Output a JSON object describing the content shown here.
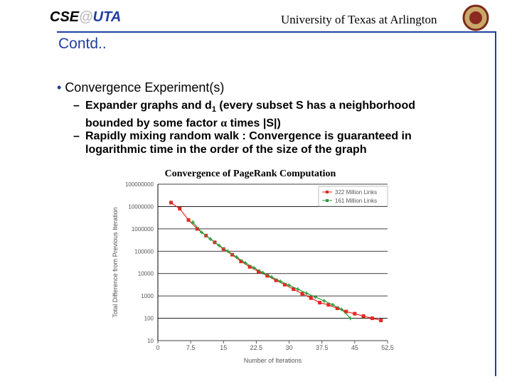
{
  "header": {
    "logo": [
      "CSE",
      "@",
      "UTA"
    ],
    "university": "University of Texas at Arlington"
  },
  "title": "Contd..",
  "bullets": [
    {
      "text": "Convergence Experiment(s)",
      "sub": [
        {
          "parts": [
            "Expander graphs and d",
            "1",
            " (every subset S has a neighborhood bounded by some factor ",
            "α",
            " times |S|)"
          ]
        },
        {
          "parts": [
            "Rapidly mixing random walk : Convergence is guaranteed in logarithmic time in the order of the size of the graph"
          ]
        }
      ]
    }
  ],
  "chart_data": {
    "type": "line",
    "title": "Convergence of PageRank Computation",
    "x_label": "Number of Iterations",
    "y_label": "Total Difference from Previous Iteration",
    "log_y": true,
    "grid": true,
    "legend": "top-right",
    "xlim": [
      0,
      52.5
    ],
    "xticks": [
      0,
      7.5,
      15,
      22.5,
      30,
      37.5,
      45,
      52.5
    ],
    "ylim": [
      10,
      100000000
    ],
    "yticks": [
      10,
      100,
      1000,
      10000,
      100000,
      1000000,
      10000000,
      100000000
    ],
    "series": [
      {
        "name": "322 Million Links",
        "color": "#e8251f",
        "marker": "square",
        "x": [
          3,
          5,
          7,
          9,
          11,
          13,
          15,
          17,
          19,
          21,
          23,
          25,
          27,
          29,
          31,
          33,
          35,
          37,
          39,
          41,
          43,
          45,
          47,
          49,
          51
        ],
        "values": [
          15000000,
          8000000,
          2500000,
          1000000,
          500000,
          250000,
          125000,
          70000,
          35000,
          20000,
          12500,
          8000,
          5000,
          3200,
          2000,
          1250,
          800,
          500,
          400,
          280,
          200,
          160,
          125,
          100,
          80
        ]
      },
      {
        "name": "161 Million Links",
        "color": "#2e9a3c",
        "marker": "cross",
        "x": [
          8,
          10,
          12,
          14,
          16,
          18,
          20,
          22,
          24,
          26,
          28,
          30,
          32,
          34,
          36,
          38,
          40,
          42,
          44
        ],
        "values": [
          2000000,
          700000,
          350000,
          180000,
          100000,
          55000,
          30000,
          18000,
          11000,
          7000,
          4500,
          3000,
          2000,
          1300,
          900,
          600,
          400,
          250,
          100
        ]
      }
    ]
  }
}
